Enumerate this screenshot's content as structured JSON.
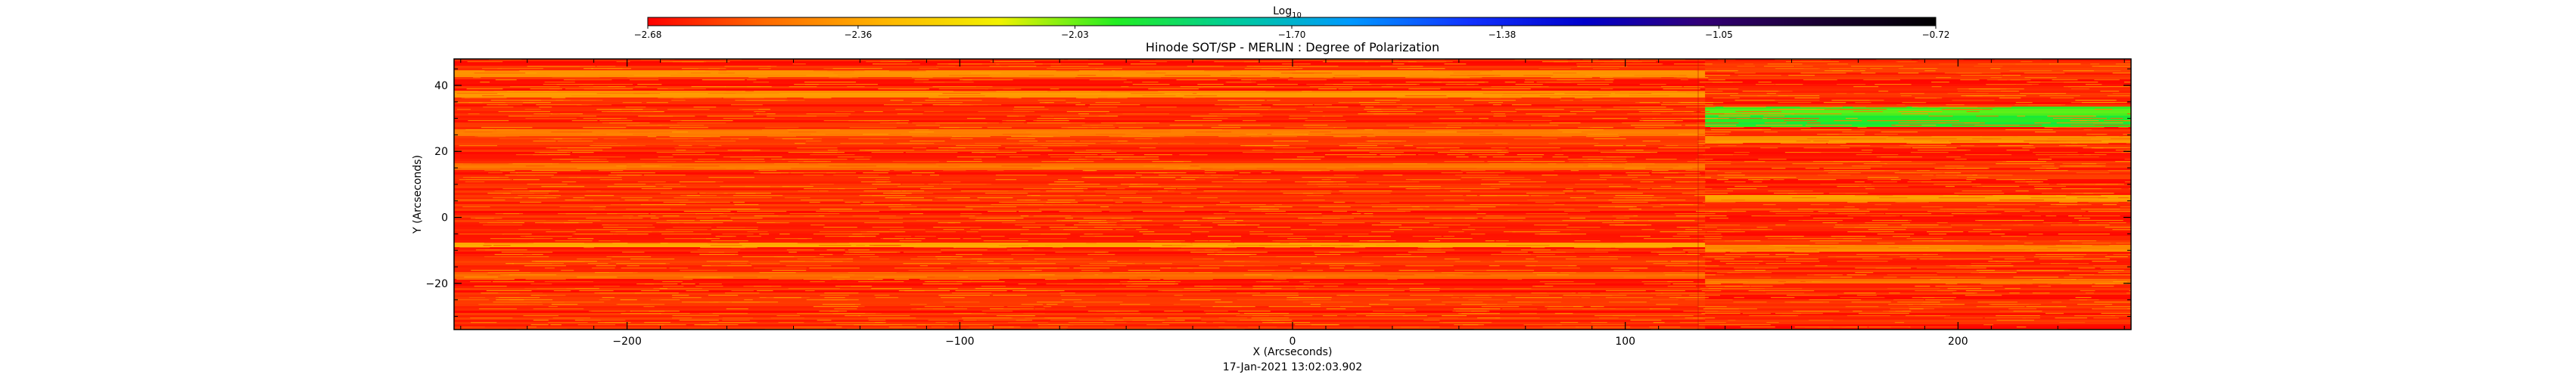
{
  "chart_data": {
    "type": "heatmap",
    "title": "Hinode SOT/SP - MERLIN : Degree of Polarization",
    "xlabel": "X (Arcseconds)",
    "ylabel": "Y (Arcseconds)",
    "timestamp": "17-Jan-2021 13:02:03.902",
    "xlim": [
      -252,
      252
    ],
    "ylim": [
      -34,
      48
    ],
    "xticks": [
      -200,
      -100,
      0,
      100,
      200
    ],
    "xtick_labels": [
      "−200",
      "−100",
      "0",
      "100",
      "200"
    ],
    "yticks": [
      -20,
      0,
      20,
      40
    ],
    "ytick_labels": [
      "−20",
      "0",
      "20",
      "40"
    ],
    "grid": false,
    "colorbar": {
      "title_base": "Log",
      "title_sub": "10",
      "range": [
        -2.68,
        -0.72
      ],
      "tick_values": [
        -2.68,
        -2.36,
        -2.03,
        -1.7,
        -1.38,
        -1.05,
        -0.72
      ],
      "tick_labels": [
        "−2.68",
        "−2.36",
        "−2.03",
        "−1.70",
        "−1.38",
        "−1.05",
        "−0.72"
      ],
      "colors": [
        "#ff0000",
        "#ff6a00",
        "#ffb400",
        "#f2f200",
        "#22ee22",
        "#00cc99",
        "#0099ff",
        "#1133ff",
        "#0000cc",
        "#330077",
        "#1a0033",
        "#000000"
      ]
    },
    "seam_x": 124,
    "background_level": -2.62,
    "bands": [
      {
        "x": [
          -252,
          124
        ],
        "y": [
          43,
          45
        ],
        "level": -2.42
      },
      {
        "x": [
          -252,
          124
        ],
        "y": [
          37,
          39
        ],
        "level": -2.4
      },
      {
        "x": [
          -252,
          124
        ],
        "y": [
          25,
          27
        ],
        "level": -2.45
      },
      {
        "x": [
          -252,
          124
        ],
        "y": [
          15,
          17
        ],
        "level": -2.48
      },
      {
        "x": [
          -252,
          124
        ],
        "y": [
          -9,
          -7
        ],
        "level": -2.35
      },
      {
        "x": [
          -252,
          124
        ],
        "y": [
          -18,
          -16
        ],
        "level": -2.5
      },
      {
        "x": [
          124,
          252
        ],
        "y": [
          31,
          34
        ],
        "level": -2.0
      },
      {
        "x": [
          124,
          252
        ],
        "y": [
          28,
          31
        ],
        "level": -1.95
      },
      {
        "x": [
          124,
          252
        ],
        "y": [
          23,
          25
        ],
        "level": -2.4
      },
      {
        "x": [
          124,
          252
        ],
        "y": [
          5,
          7
        ],
        "level": -2.38
      },
      {
        "x": [
          124,
          252
        ],
        "y": [
          -10,
          -8
        ],
        "level": -2.42
      },
      {
        "x": [
          124,
          252
        ],
        "y": [
          -20,
          -18
        ],
        "level": -2.48
      }
    ]
  }
}
